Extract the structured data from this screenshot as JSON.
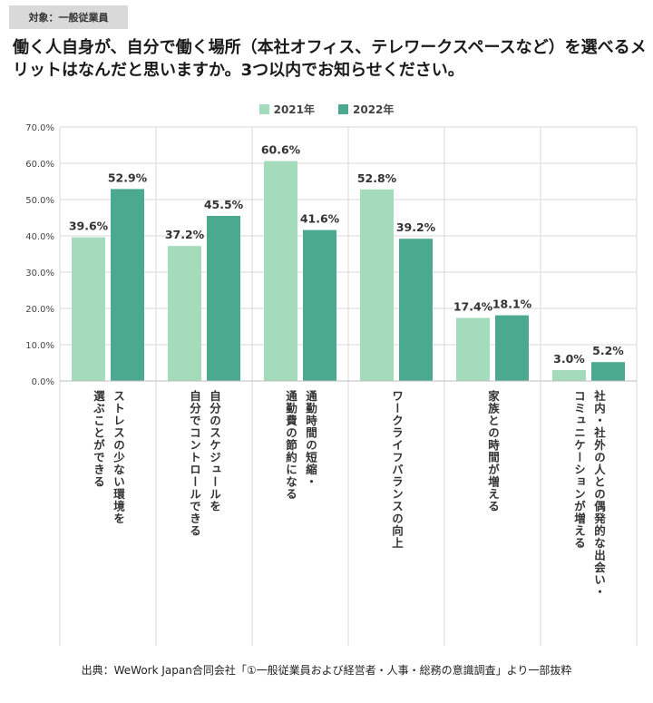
{
  "header": {
    "badge": "対象：一般従業員",
    "title": "働く人自身が、自分で働く場所（本社オフィス、テレワークスペースなど）を選べるメリットはなんだと思いますか。3つ以内でお知らせください。"
  },
  "source": "出典：WeWork Japan合同会社「①一般従業員および経営者・人事・総務の意識調査」より一部抜粋",
  "colors": {
    "series_2021": "#a3dbbb",
    "series_2022": "#4aa98e",
    "grid": "#d9d9d9"
  },
  "chart_data": {
    "type": "bar",
    "title": "",
    "ylabel": "",
    "xlabel": "",
    "ylim": [
      0,
      70
    ],
    "yticks": [
      "0.0%",
      "10.0%",
      "20.0%",
      "30.0%",
      "40.0%",
      "50.0%",
      "60.0%",
      "70.0%"
    ],
    "grid": true,
    "legend_position": "top-center",
    "categories": [
      [
        "ストレスの少ない環境を",
        "選ぶことができる"
      ],
      [
        "自分のスケジュールを",
        "自分でコントロールできる"
      ],
      [
        "通勤時間の短縮・",
        "通勤費の節約になる"
      ],
      [
        "ワークライフバランスの向上"
      ],
      [
        "家族との時間が増える"
      ],
      [
        "社内・社外の人との偶発的な出会い・",
        "コミュニケーションが増える"
      ]
    ],
    "series": [
      {
        "name": "2021年",
        "values": [
          39.6,
          37.2,
          60.6,
          52.8,
          17.4,
          3.0
        ],
        "labels": [
          "39.6%",
          "37.2%",
          "60.6%",
          "52.8%",
          "17.4%",
          "3.0%"
        ]
      },
      {
        "name": "2022年",
        "values": [
          52.9,
          45.5,
          41.6,
          39.2,
          18.1,
          5.2
        ],
        "labels": [
          "52.9%",
          "45.5%",
          "41.6%",
          "39.2%",
          "18.1%",
          "5.2%"
        ]
      }
    ]
  }
}
